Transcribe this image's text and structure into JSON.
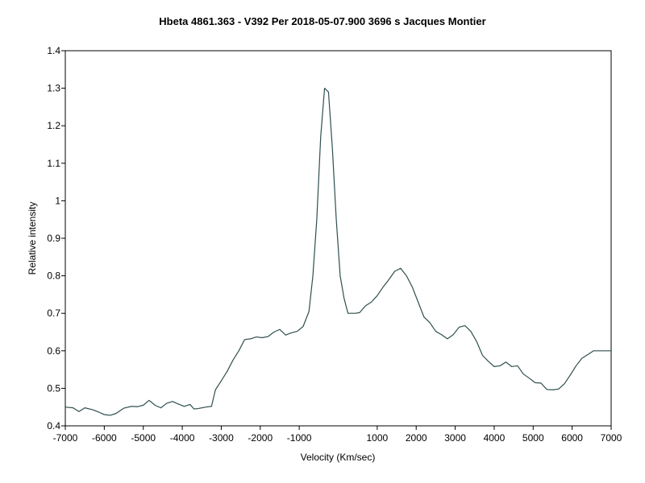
{
  "chart_data": {
    "type": "line",
    "title": "Hbeta 4861.363 - V392 Per   2018-05-07.900   3696 s   Jacques Montier",
    "xlabel": "Velocity (Km/sec)",
    "ylabel": "Relative intensity",
    "xlim": [
      -7000,
      7000
    ],
    "ylim": [
      0.4,
      1.4
    ],
    "grid": false,
    "x_ticks": [
      -7000,
      -6000,
      -5000,
      -4000,
      -3000,
      -2000,
      -1000,
      1000,
      2000,
      3000,
      4000,
      5000,
      6000,
      7000
    ],
    "x_tick_labels": [
      "-7000",
      "-6000",
      "-5000",
      "-4000",
      "-3000",
      "-2000",
      "-1000",
      "1000",
      "2000",
      "3000",
      "4000",
      "5000",
      "6000",
      "7000"
    ],
    "y_ticks": [
      0.4,
      0.5,
      0.6,
      0.7,
      0.8,
      0.9,
      1.0,
      1.1,
      1.2,
      1.3,
      1.4
    ],
    "y_tick_labels": [
      "0.4",
      "0.5",
      "0.6",
      "0.7",
      "0.8",
      "0.9",
      "1",
      "1.1",
      "1.2",
      "1.3",
      "1.4"
    ],
    "line_color": "#2f4f4f",
    "series": [
      {
        "x": [
          -7000,
          -6800,
          -6650,
          -6500,
          -6300,
          -6150,
          -6000,
          -5850,
          -5700,
          -5500,
          -5300,
          -5150,
          -5000,
          -4850,
          -4700,
          -4550,
          -4400,
          -4250,
          -4100,
          -3950,
          -3800,
          -3700,
          -3600,
          -3400,
          -3250,
          -3150,
          -3000,
          -2850,
          -2700,
          -2550,
          -2400,
          -2250,
          -2100,
          -1950,
          -1800,
          -1650,
          -1500,
          -1350,
          -1200,
          -1050,
          -900,
          -750,
          -650,
          -550,
          -450,
          -350,
          -250,
          -150,
          -50,
          50,
          150,
          250,
          350,
          450,
          550,
          700,
          850,
          1000,
          1150,
          1300,
          1450,
          1600,
          1750,
          1900,
          2050,
          2200,
          2350,
          2500,
          2650,
          2800,
          2950,
          3100,
          3250,
          3400,
          3550,
          3700,
          3850,
          4000,
          4150,
          4300,
          4450,
          4600,
          4750,
          4900,
          5050,
          5200,
          5350,
          5500,
          5650,
          5800,
          5950,
          6100,
          6250,
          6400,
          6550,
          6700,
          6850,
          7000
        ],
        "y": [
          0.45,
          0.448,
          0.438,
          0.448,
          0.443,
          0.437,
          0.43,
          0.428,
          0.433,
          0.447,
          0.452,
          0.451,
          0.455,
          0.468,
          0.455,
          0.448,
          0.46,
          0.465,
          0.458,
          0.452,
          0.457,
          0.445,
          0.446,
          0.45,
          0.452,
          0.496,
          0.52,
          0.545,
          0.575,
          0.6,
          0.63,
          0.632,
          0.637,
          0.635,
          0.638,
          0.65,
          0.657,
          0.642,
          0.648,
          0.652,
          0.665,
          0.705,
          0.8,
          0.95,
          1.17,
          1.3,
          1.29,
          1.14,
          0.95,
          0.8,
          0.74,
          0.7,
          0.7,
          0.7,
          0.702,
          0.72,
          0.73,
          0.747,
          0.77,
          0.79,
          0.812,
          0.82,
          0.8,
          0.77,
          0.73,
          0.69,
          0.675,
          0.652,
          0.643,
          0.632,
          0.643,
          0.663,
          0.667,
          0.652,
          0.625,
          0.588,
          0.572,
          0.558,
          0.56,
          0.57,
          0.558,
          0.56,
          0.538,
          0.527,
          0.515,
          0.514,
          0.497,
          0.496,
          0.498,
          0.512,
          0.535,
          0.56,
          0.58,
          0.59,
          0.6,
          0.6,
          0.6,
          0.6
        ]
      }
    ]
  }
}
